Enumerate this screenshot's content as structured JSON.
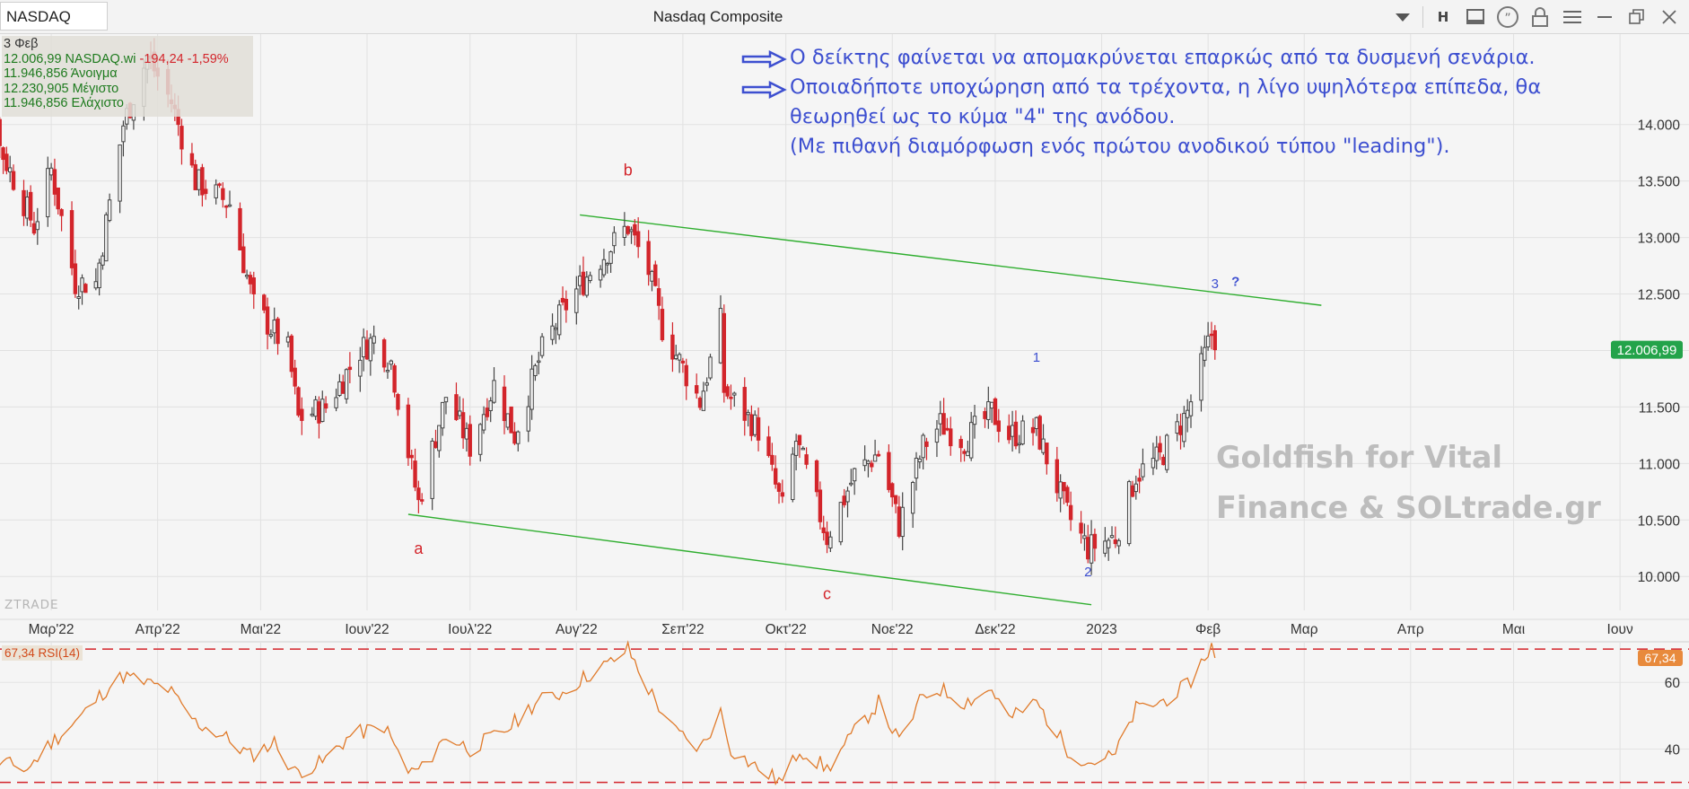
{
  "toolbar": {
    "symbol": "NASDAQ",
    "title": "Nasdaq Composite",
    "icons": [
      "chevron-down-icon",
      "h-icon",
      "window-icon",
      "quote-icon",
      "lock-icon",
      "menu-icon",
      "restore-icon",
      "close-icon"
    ],
    "h_label": "H"
  },
  "info": {
    "date": "3 Φεβ",
    "close_line_prefix": "12.006,99 NASDAQ.wi",
    "change": "-194,24 -1,59%",
    "open": "11.946,856 Άνοιγμα",
    "high": "12.230,905 Μέγιστο",
    "low": "11.946,856 Ελάχιστο"
  },
  "annotations": {
    "line1": "Ο δείκτης φαίνεται να απομακρύνεται επαρκώς από τα δυσμενή σενάρια.",
    "line2": "Οποιαδήποτε υποχώρηση από τα τρέχοντα, η λίγο υψηλότερα επίπεδα, θα",
    "line3": "θεωρηθεί ως το κύμα \"4\" της ανόδου.",
    "line4": "(Με πιθανή διαμόρφωση ενός πρώτου ανοδικού τύπου \"leading\")."
  },
  "watermark": {
    "line1": "Goldfish for Vital",
    "line2": "Finance & SOLtrade.gr"
  },
  "brand": "ZTRADE",
  "colors": {
    "up": "#444444",
    "down": "#d3252b",
    "channel": "#2fae2f",
    "wave_red": "#d3252b",
    "wave_blue": "#3d4fd0",
    "rsi": "#e07a2a",
    "price_tag": "#23a34a"
  },
  "chart_data": [
    {
      "type": "candlestick",
      "title": "Nasdaq Composite",
      "y_ticks": [
        10000,
        10500,
        11000,
        11500,
        12000,
        12500,
        13000,
        13500,
        14000
      ],
      "y_tick_labels": [
        "10.000",
        "10.500",
        "11.000",
        "11.500",
        "12.000",
        "12.500",
        "13.000",
        "13.500",
        "14.000"
      ],
      "ylim": [
        9700,
        14800
      ],
      "x_ticks": [
        "Μαρ'22",
        "Απρ'22",
        "Μαι'22",
        "Ιουν'22",
        "Ιουλ'22",
        "Αυγ'22",
        "Σεπ'22",
        "Οκτ'22",
        "Νοε'22",
        "Δεκ'22",
        "2023",
        "Φεβ",
        "Μαρ",
        "Απρ",
        "Μαι",
        "Ιουν"
      ],
      "last_price_label": "12.006,99",
      "last_price": 12006.99,
      "anchors": [
        [
          "2022-02-01",
          14200
        ],
        [
          "2022-02-08",
          14500
        ],
        [
          "2022-02-14",
          13800
        ],
        [
          "2022-02-24",
          13100
        ],
        [
          "2022-03-01",
          13600
        ],
        [
          "2022-03-08",
          12600
        ],
        [
          "2022-03-14",
          12600
        ],
        [
          "2022-03-22",
          14000
        ],
        [
          "2022-03-29",
          14600
        ],
        [
          "2022-04-05",
          14200
        ],
        [
          "2022-04-12",
          13500
        ],
        [
          "2022-04-22",
          13300
        ],
        [
          "2022-04-29",
          12400
        ],
        [
          "2022-05-09",
          12000
        ],
        [
          "2022-05-12",
          11400
        ],
        [
          "2022-05-20",
          11500
        ],
        [
          "2022-05-30",
          12000
        ],
        [
          "2022-06-03",
          12100
        ],
        [
          "2022-06-08",
          11900
        ],
        [
          "2022-06-13",
          11100
        ],
        [
          "2022-06-16",
          10650
        ],
        [
          "2022-06-24",
          11600
        ],
        [
          "2022-07-01",
          11150
        ],
        [
          "2022-07-08",
          11700
        ],
        [
          "2022-07-14",
          11250
        ],
        [
          "2022-07-22",
          12000
        ],
        [
          "2022-07-29",
          12400
        ],
        [
          "2022-08-05",
          12700
        ],
        [
          "2022-08-16",
          13100
        ],
        [
          "2022-08-22",
          12700
        ],
        [
          "2022-08-26",
          12200
        ],
        [
          "2022-09-06",
          11550
        ],
        [
          "2022-09-12",
          12250
        ],
        [
          "2022-09-13",
          11650
        ],
        [
          "2022-09-23",
          11300
        ],
        [
          "2022-09-30",
          10600
        ],
        [
          "2022-10-04",
          11200
        ],
        [
          "2022-10-13",
          10350
        ],
        [
          "2022-10-21",
          10900
        ],
        [
          "2022-10-28",
          11100
        ],
        [
          "2022-11-03",
          10450
        ],
        [
          "2022-11-10",
          11150
        ],
        [
          "2022-11-15",
          11350
        ],
        [
          "2022-11-22",
          11200
        ],
        [
          "2022-11-30",
          11450
        ],
        [
          "2022-12-05",
          11250
        ],
        [
          "2022-12-13",
          11300
        ],
        [
          "2022-12-22",
          10550
        ],
        [
          "2022-12-28",
          10250
        ],
        [
          "2023-01-05",
          10350
        ],
        [
          "2023-01-11",
          10900
        ],
        [
          "2023-01-18",
          11050
        ],
        [
          "2023-01-26",
          11450
        ],
        [
          "2023-02-02",
          12150
        ],
        [
          "2023-02-03",
          12007
        ]
      ],
      "wave_labels": [
        {
          "label": "a",
          "color": "red"
        },
        {
          "label": "b",
          "color": "red"
        },
        {
          "label": "c",
          "color": "red"
        },
        {
          "label": "1",
          "color": "blue"
        },
        {
          "label": "2",
          "color": "blue"
        },
        {
          "label": "3",
          "color": "blue"
        },
        {
          "label": "?",
          "color": "blue"
        }
      ],
      "channel": {
        "upper": [
          [
            "2022-08-02",
            13200
          ],
          [
            "2023-03-06",
            12400
          ]
        ],
        "lower": [
          [
            "2022-06-13",
            10550
          ],
          [
            "2022-12-29",
            9750
          ]
        ]
      }
    },
    {
      "type": "line",
      "name": "RSI(14)",
      "label": "67,34 RSI(14)",
      "last_value": 67.34,
      "last_value_label": "67,34",
      "y_ticks": [
        40,
        60
      ],
      "levels": [
        70,
        30
      ],
      "ylim": [
        28,
        73
      ],
      "anchors": [
        [
          "2022-02-01",
          37
        ],
        [
          "2022-02-08",
          43
        ],
        [
          "2022-02-14",
          36
        ],
        [
          "2022-02-22",
          34
        ],
        [
          "2022-03-01",
          42
        ],
        [
          "2022-03-10",
          50
        ],
        [
          "2022-03-16",
          57
        ],
        [
          "2022-03-22",
          62
        ],
        [
          "2022-03-28",
          60
        ],
        [
          "2022-04-04",
          58
        ],
        [
          "2022-04-12",
          48
        ],
        [
          "2022-04-20",
          44
        ],
        [
          "2022-04-28",
          38
        ],
        [
          "2022-05-05",
          42
        ],
        [
          "2022-05-11",
          33
        ],
        [
          "2022-05-19",
          36
        ],
        [
          "2022-05-27",
          44
        ],
        [
          "2022-06-06",
          47
        ],
        [
          "2022-06-13",
          33
        ],
        [
          "2022-06-17",
          34
        ],
        [
          "2022-06-24",
          44
        ],
        [
          "2022-07-01",
          40
        ],
        [
          "2022-07-12",
          46
        ],
        [
          "2022-07-20",
          54
        ],
        [
          "2022-07-28",
          57
        ],
        [
          "2022-08-04",
          62
        ],
        [
          "2022-08-11",
          66
        ],
        [
          "2022-08-16",
          70
        ],
        [
          "2022-08-22",
          58
        ],
        [
          "2022-08-29",
          46
        ],
        [
          "2022-09-06",
          40
        ],
        [
          "2022-09-12",
          51
        ],
        [
          "2022-09-15",
          40
        ],
        [
          "2022-09-23",
          34
        ],
        [
          "2022-09-30",
          30
        ],
        [
          "2022-10-05",
          40
        ],
        [
          "2022-10-13",
          34
        ],
        [
          "2022-10-21",
          45
        ],
        [
          "2022-10-28",
          54
        ],
        [
          "2022-11-03",
          42
        ],
        [
          "2022-11-10",
          56
        ],
        [
          "2022-11-15",
          58
        ],
        [
          "2022-11-22",
          54
        ],
        [
          "2022-11-30",
          58
        ],
        [
          "2022-12-05",
          49
        ],
        [
          "2022-12-13",
          54
        ],
        [
          "2022-12-22",
          40
        ],
        [
          "2022-12-28",
          36
        ],
        [
          "2023-01-05",
          38
        ],
        [
          "2023-01-11",
          52
        ],
        [
          "2023-01-18",
          54
        ],
        [
          "2023-01-26",
          59
        ],
        [
          "2023-02-02",
          71
        ],
        [
          "2023-02-03",
          67.34
        ]
      ]
    }
  ]
}
